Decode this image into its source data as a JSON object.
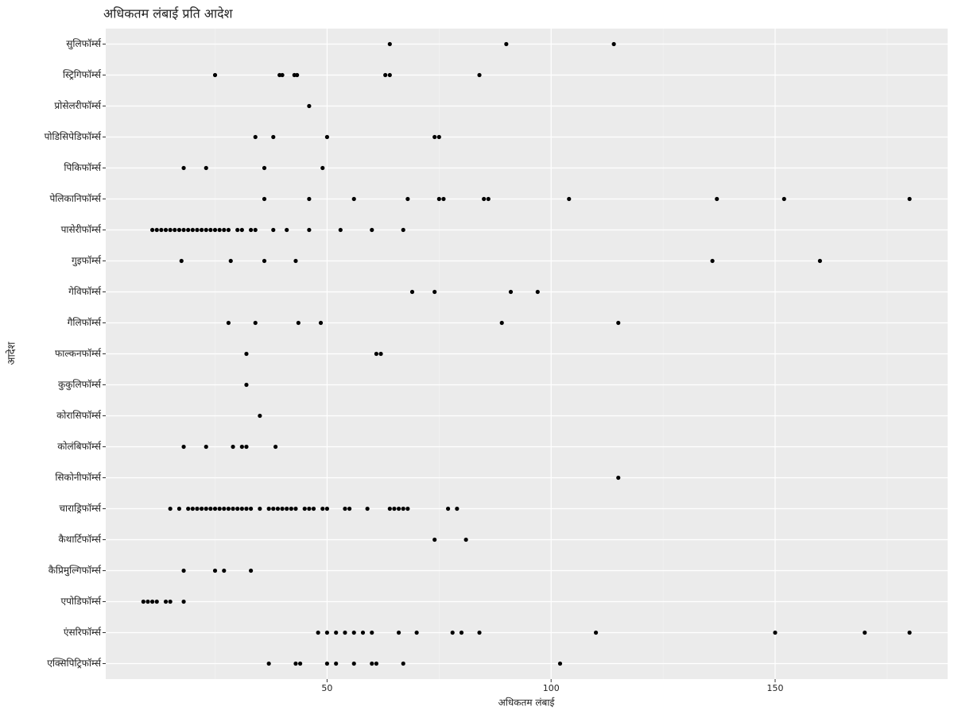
{
  "chart_data": {
    "type": "strip",
    "title": "अधिकतम लंबाई प्रति आदेश",
    "x_label": "अधिकतम लंबाई",
    "y_label": "आदेश",
    "categories": [
      "सुलिफॉर्म्स",
      "स्ट्रिगिफॉर्म्स",
      "प्रोसेलरीफॉर्म्स",
      "पोडिसिपेडिफॉर्म्स",
      "पिकिफॉर्म्स",
      "पेलिकानिफॉर्म्स",
      "पासेरीफॉर्म्स",
      "गुइफॉर्म्स",
      "गेविफॉर्म्स",
      "गैलिफॉर्म्स",
      "फाल्कनफॉर्म्स",
      "कुकुलिफॉर्म्स",
      "कोरासिफॉर्म्स",
      "कोलंबिफॉर्म्स",
      "सिकोनीफॉर्म्स",
      "चाराड्रिफॉर्म्स",
      "कैथार्टिफॉर्म्स",
      "कैप्रिमुल्गिफॉर्म्स",
      "एपोडिफॉर्म्स",
      "एंसरिफॉर्म्स",
      "एक्सिपिट्रिफॉर्म्स"
    ],
    "values": [
      [
        64,
        90,
        114
      ],
      [
        25,
        39.4,
        40,
        42.7,
        43.3,
        63,
        64,
        84
      ],
      [
        46
      ],
      [
        34,
        38,
        50,
        74,
        75
      ],
      [
        18,
        23,
        36,
        49
      ],
      [
        36,
        46,
        56,
        68,
        75,
        76,
        85,
        86,
        104,
        137,
        152,
        180
      ],
      [
        11,
        12,
        13,
        14,
        15,
        16,
        17,
        18,
        19,
        20,
        21,
        22,
        23,
        24,
        25,
        26,
        27,
        28,
        30,
        31,
        33,
        34,
        38,
        41,
        46,
        53,
        60,
        67
      ],
      [
        17.5,
        28.5,
        36,
        43,
        136,
        160
      ],
      [
        69,
        74,
        91,
        97
      ],
      [
        28,
        34,
        43.6,
        48.6,
        89,
        115
      ],
      [
        32,
        61,
        62
      ],
      [
        32
      ],
      [
        35
      ],
      [
        18,
        23,
        29,
        31,
        32,
        38.5
      ],
      [
        115
      ],
      [
        15,
        17,
        19,
        20,
        21,
        22,
        23,
        24,
        25,
        26,
        27,
        28,
        29,
        30,
        31,
        32,
        33,
        35,
        37,
        38,
        39,
        40,
        41,
        42,
        43,
        45,
        46,
        47,
        49,
        50,
        54,
        55,
        59,
        64,
        65,
        66,
        67,
        68,
        77,
        79
      ],
      [
        74,
        81
      ],
      [
        18,
        25,
        27,
        33
      ],
      [
        9,
        10,
        11,
        12,
        14,
        15,
        18
      ],
      [
        48,
        50,
        52,
        54,
        56,
        58,
        60,
        66,
        70,
        78,
        80,
        84,
        110,
        150,
        170,
        180
      ],
      [
        37,
        43,
        44,
        50,
        52,
        56,
        60,
        61,
        67,
        102
      ]
    ],
    "color": "#000000",
    "xlim": [
      0.6,
      188.5
    ],
    "xticks": [
      50,
      100,
      150
    ],
    "grid": true
  }
}
